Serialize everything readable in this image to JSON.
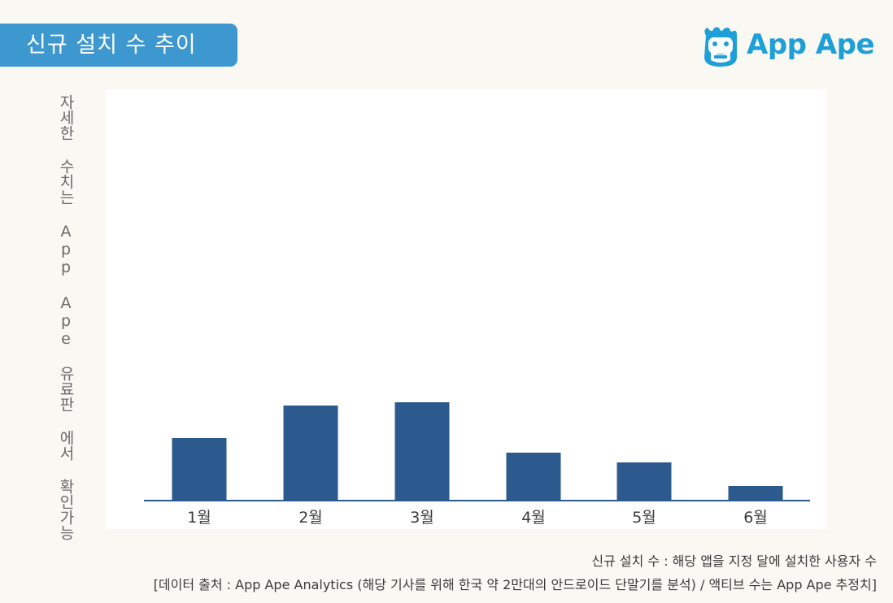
{
  "header": {
    "title": "신규 설치 수 추이",
    "logo_text": "App Ape"
  },
  "side_note": "자세한 수치는 App Ape 유료판 에서 확인가능",
  "chart_data": {
    "type": "bar",
    "categories": [
      "1월",
      "2월",
      "3월",
      "4월",
      "5월",
      "6월"
    ],
    "values": [
      76,
      116,
      120,
      58,
      46,
      17
    ],
    "ylim": [
      0,
      490
    ],
    "title": "",
    "xlabel": "",
    "ylabel": "",
    "grid": false,
    "legend": "none",
    "bar_color": "#2d5a8e",
    "axis_color": "#2d5a8e"
  },
  "footnotes": {
    "definition": "신규 설치 수 : 해당 앱을 지정 달에 설치한 사용자 수",
    "source": "[데이터 출처 : App Ape Analytics (해당 기사를 위해 한국 약 2만대의 안드로이드 단말기를 분석) / 액티브 수는 App Ape 추정치]"
  },
  "colors": {
    "title_badge": "#3d98cf",
    "logo": "#1f9fd8",
    "background": "#f9f8f3"
  }
}
